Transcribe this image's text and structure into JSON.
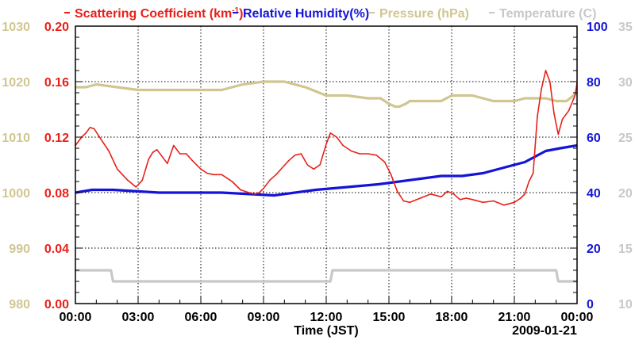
{
  "chart_data": {
    "type": "line",
    "legend": [
      {
        "key": "scat",
        "text": "Scattering Coefficient (km",
        "sup": "-1",
        "tail": ")",
        "color": "#e8201a"
      },
      {
        "key": "rh",
        "text": "Relative Humidity(%)",
        "color": "#1414d8"
      },
      {
        "key": "pres",
        "text": "Pressure (hPa)",
        "color": "#cfc690"
      },
      {
        "key": "temp",
        "text": "Temperature (C)",
        "color": "#c8c8c8"
      }
    ],
    "xlabel": "Time (JST)",
    "date_label": "2009-01-21",
    "x_range_hours": [
      0,
      24
    ],
    "x_ticks": [
      {
        "h": 0,
        "label": "00:00"
      },
      {
        "h": 3,
        "label": "03:00"
      },
      {
        "h": 6,
        "label": "06:00"
      },
      {
        "h": 9,
        "label": "09:00"
      },
      {
        "h": 12,
        "label": "12:00"
      },
      {
        "h": 15,
        "label": "15:00"
      },
      {
        "h": 18,
        "label": "18:00"
      },
      {
        "h": 21,
        "label": "21:00"
      },
      {
        "h": 24,
        "label": "00:00"
      }
    ],
    "axes": {
      "pressure": {
        "range": [
          980,
          1030
        ],
        "ticks": [
          "980",
          "990",
          "1000",
          "1010",
          "1020",
          "1030"
        ],
        "color": "#cfc690"
      },
      "scattering": {
        "range": [
          0,
          0.2
        ],
        "ticks": [
          "0.00",
          "0.04",
          "0.08",
          "0.12",
          "0.16",
          "0.20"
        ],
        "color": "#e8201a"
      },
      "humidity": {
        "range": [
          0,
          100
        ],
        "ticks": [
          "0",
          "20",
          "40",
          "60",
          "80",
          "100"
        ],
        "color": "#1414d8"
      },
      "temperature": {
        "range": [
          10,
          35
        ],
        "ticks": [
          "10",
          "15",
          "20",
          "25",
          "30",
          "35"
        ],
        "color": "#c8c8c8"
      }
    },
    "series": [
      {
        "name": "Scattering Coefficient",
        "axis": "scattering",
        "color": "#e8201a",
        "x": [
          0,
          0.3,
          0.5,
          0.7,
          0.9,
          1.2,
          1.6,
          2.0,
          2.5,
          2.9,
          3.2,
          3.5,
          3.7,
          3.9,
          4.1,
          4.4,
          4.7,
          5.0,
          5.3,
          5.6,
          6.0,
          6.3,
          6.6,
          7.0,
          7.5,
          7.9,
          8.3,
          8.6,
          8.8,
          9.0,
          9.3,
          9.6,
          9.9,
          10.2,
          10.5,
          10.8,
          11.1,
          11.4,
          11.7,
          12.0,
          12.2,
          12.5,
          12.8,
          13.2,
          13.6,
          14.0,
          14.4,
          14.8,
          15.1,
          15.4,
          15.7,
          16.0,
          16.5,
          17.0,
          17.5,
          17.8,
          18.1,
          18.4,
          18.7,
          19.0,
          19.5,
          20.0,
          20.5,
          21.0,
          21.3,
          21.5,
          21.7,
          21.9,
          22.1,
          22.3,
          22.5,
          22.7,
          22.9,
          23.1,
          23.3,
          23.6,
          23.9,
          24.0
        ],
        "values": [
          0.114,
          0.12,
          0.123,
          0.127,
          0.126,
          0.119,
          0.11,
          0.097,
          0.089,
          0.084,
          0.089,
          0.104,
          0.109,
          0.111,
          0.107,
          0.101,
          0.114,
          0.108,
          0.108,
          0.103,
          0.097,
          0.094,
          0.093,
          0.093,
          0.088,
          0.082,
          0.08,
          0.079,
          0.08,
          0.083,
          0.089,
          0.093,
          0.098,
          0.103,
          0.107,
          0.108,
          0.1,
          0.097,
          0.1,
          0.115,
          0.123,
          0.12,
          0.114,
          0.11,
          0.108,
          0.108,
          0.107,
          0.102,
          0.093,
          0.081,
          0.074,
          0.073,
          0.076,
          0.079,
          0.077,
          0.081,
          0.079,
          0.075,
          0.076,
          0.075,
          0.073,
          0.074,
          0.071,
          0.073,
          0.076,
          0.079,
          0.088,
          0.094,
          0.135,
          0.155,
          0.168,
          0.16,
          0.137,
          0.122,
          0.133,
          0.139,
          0.15,
          0.159
        ]
      },
      {
        "name": "Relative Humidity",
        "axis": "humidity",
        "color": "#1414d8",
        "x": [
          0,
          0.8,
          1.8,
          4.0,
          7.0,
          9.5,
          11.5,
          13.0,
          14.5,
          15.5,
          16.5,
          17.5,
          18.5,
          19.5,
          20.5,
          21.5,
          22.5,
          23.2,
          24.0
        ],
        "values": [
          40,
          41,
          41,
          40,
          40,
          39,
          41,
          42,
          43,
          44,
          45,
          46,
          46,
          47,
          49,
          51,
          55,
          56,
          57
        ]
      },
      {
        "name": "Pressure",
        "axis": "pressure",
        "color": "#cfc690",
        "x": [
          0,
          0.5,
          1.0,
          2.0,
          3.0,
          4.0,
          5.0,
          6.0,
          7.0,
          8.0,
          9.0,
          10.0,
          11.0,
          12.0,
          13.0,
          14.0,
          14.6,
          15.0,
          15.3,
          15.5,
          15.8,
          16.0,
          16.5,
          17.0,
          17.5,
          18.0,
          19.0,
          20.0,
          21.0,
          21.5,
          22.0,
          22.5,
          23.0,
          23.5,
          24.0
        ],
        "values": [
          1019,
          1019,
          1019.5,
          1019,
          1018.5,
          1018.5,
          1018.5,
          1018.5,
          1018.5,
          1019.5,
          1020,
          1020,
          1019,
          1017.5,
          1017.5,
          1017,
          1017,
          1016,
          1015.5,
          1015.5,
          1016,
          1016.5,
          1016.5,
          1016.5,
          1016.5,
          1017.5,
          1017.5,
          1016.5,
          1016.5,
          1017,
          1017,
          1017,
          1016.5,
          1016.5,
          1018
        ]
      },
      {
        "name": "Temperature",
        "axis": "temperature",
        "color": "#c8c8c8",
        "x": [
          0,
          1.7,
          1.8,
          12.2,
          12.3,
          23.0,
          23.1,
          24.0
        ],
        "values": [
          13,
          13,
          12,
          12,
          13,
          13,
          12,
          12
        ]
      }
    ]
  }
}
